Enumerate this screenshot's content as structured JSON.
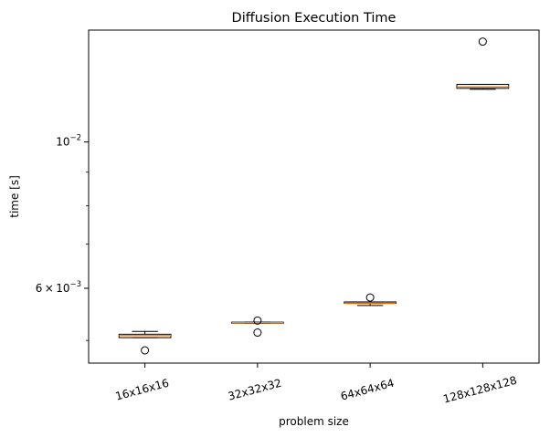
{
  "chart_data": {
    "type": "box",
    "title": "Diffusion Execution Time",
    "xlabel": "problem size",
    "ylabel": "time [s]",
    "yscale": "log",
    "ylim": [
      0.00462,
      0.01478
    ],
    "y_major_ticks": [
      {
        "value": 0.01,
        "base": "10",
        "exp": "−2"
      },
      {
        "value": 0.006,
        "mant": "6",
        "times": "×",
        "base": "10",
        "exp": "−3"
      }
    ],
    "y_minor_ticks": [
      0.005,
      0.007,
      0.008,
      0.009
    ],
    "categories": [
      "16x16x16",
      "32x32x32",
      "64x64x64",
      "128x128x128"
    ],
    "boxes": [
      {
        "whisker_low": 0.00505,
        "q1": 0.00505,
        "median": 0.00509,
        "q3": 0.00511,
        "whisker_high": 0.00516,
        "fliers": [
          0.00483
        ]
      },
      {
        "whisker_low": 0.00531,
        "q1": 0.00531,
        "median": 0.00532,
        "q3": 0.00533,
        "whisker_high": 0.00533,
        "fliers": [
          0.00536,
          0.00514
        ]
      },
      {
        "whisker_low": 0.00565,
        "q1": 0.00569,
        "median": 0.0057,
        "q3": 0.00572,
        "whisker_high": 0.00572,
        "fliers": [
          0.00581
        ]
      },
      {
        "whisker_low": 0.01202,
        "q1": 0.01206,
        "median": 0.01212,
        "q3": 0.01223,
        "whisker_high": 0.01223,
        "fliers": [
          0.0142
        ]
      }
    ],
    "colors": {
      "box": "#000000",
      "median": "#ff7f0e",
      "flier": "#000000",
      "axis": "#000000"
    }
  }
}
